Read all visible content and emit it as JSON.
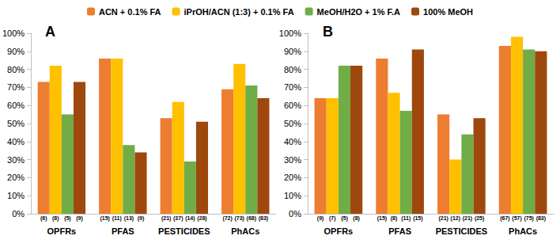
{
  "chart_data": [
    {
      "type": "bar",
      "title": "A",
      "categories": [
        "OPFRs",
        "PFAS",
        "PESTICIDES",
        "PhACs"
      ],
      "series": [
        {
          "name": "ACN + 0.1% FA",
          "color": "#ED7D31",
          "values": [
            73,
            86,
            53,
            69
          ],
          "n_labels": [
            "(6)",
            "(15)",
            "(21)",
            "(72)"
          ]
        },
        {
          "name": "iPrOH/ACN (1:3) + 0.1% FA",
          "color": "#FFC000",
          "values": [
            82,
            86,
            62,
            83
          ],
          "n_labels": [
            "(8)",
            "(11)",
            "(37)",
            "(73)"
          ]
        },
        {
          "name": "MeOH/H2O + 1% F.A",
          "color": "#70AD47",
          "values": [
            55,
            38,
            29,
            71
          ],
          "n_labels": [
            "(5)",
            "(13)",
            "(14)",
            "(68)"
          ]
        },
        {
          "name": "100% MeOH",
          "color": "#9E480E",
          "values": [
            73,
            34,
            51,
            64
          ],
          "n_labels": [
            "(9)",
            "(9)",
            "(28)",
            "(83)"
          ]
        }
      ],
      "ylim": [
        0,
        100
      ],
      "yticks": [
        {
          "value": 0,
          "label": "0%"
        },
        {
          "value": 10,
          "label": "10%"
        },
        {
          "value": 20,
          "label": "20%"
        },
        {
          "value": 30,
          "label": "30%"
        },
        {
          "value": 40,
          "label": "40%"
        },
        {
          "value": 50,
          "label": "50%"
        },
        {
          "value": 60,
          "label": "60%"
        },
        {
          "value": 70,
          "label": "70%"
        },
        {
          "value": 80,
          "label": "80%"
        },
        {
          "value": 90,
          "label": "90%"
        },
        {
          "value": 100,
          "label": "100%"
        }
      ],
      "grid": false,
      "legend": "top"
    },
    {
      "type": "bar",
      "title": "B",
      "categories": [
        "OPFRs",
        "PFAS",
        "PESTICIDES",
        "PhACs"
      ],
      "series": [
        {
          "name": "ACN + 0.1% FA",
          "color": "#ED7D31",
          "values": [
            64,
            86,
            55,
            93
          ],
          "n_labels": [
            "(9)",
            "(15)",
            "(21)",
            "(67)"
          ]
        },
        {
          "name": "iPrOH/ACN (1:3) + 0.1% FA",
          "color": "#FFC000",
          "values": [
            64,
            67,
            30,
            98
          ],
          "n_labels": [
            "(7)",
            "(8)",
            "(12)",
            "(57)"
          ]
        },
        {
          "name": "MeOH/H2O + 1% F.A",
          "color": "#70AD47",
          "values": [
            82,
            57,
            44,
            91
          ],
          "n_labels": [
            "(5)",
            "(11)",
            "(21)",
            "(75)"
          ]
        },
        {
          "name": "100% MeOH",
          "color": "#9E480E",
          "values": [
            82,
            91,
            53,
            90
          ],
          "n_labels": [
            "(8)",
            "(15)",
            "(25)",
            "(83)"
          ]
        }
      ],
      "ylim": [
        0,
        100
      ],
      "yticks": [
        {
          "value": 0,
          "label": "0%"
        },
        {
          "value": 10,
          "label": "10%"
        },
        {
          "value": 20,
          "label": "20%"
        },
        {
          "value": 30,
          "label": "30%"
        },
        {
          "value": 40,
          "label": "40%"
        },
        {
          "value": 50,
          "label": "50%"
        },
        {
          "value": 60,
          "label": "60%"
        },
        {
          "value": 70,
          "label": "70%"
        },
        {
          "value": 80,
          "label": "80%"
        },
        {
          "value": 90,
          "label": "90%"
        },
        {
          "value": 100,
          "label": "100%"
        }
      ],
      "grid": false,
      "legend": "top"
    }
  ]
}
